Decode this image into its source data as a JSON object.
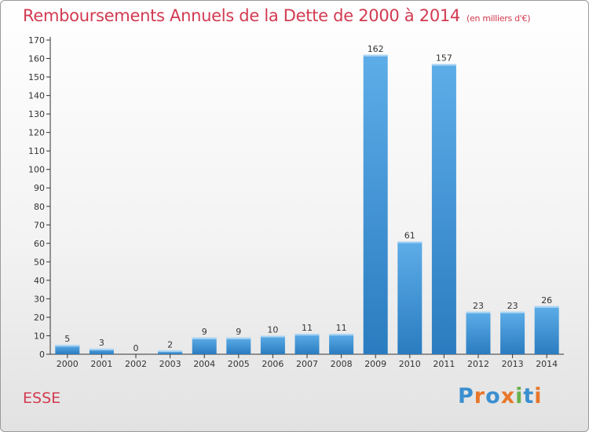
{
  "title": "Remboursements Annuels de la Dette de 2000 à 2014",
  "unit": "(en milliers d'€)",
  "commune": "ESSE",
  "logo": {
    "text": "Proxiti",
    "letters": [
      "P",
      "r",
      "o",
      "x",
      "i",
      "t",
      "i"
    ],
    "colors": [
      "#3b8fd0",
      "#e8762a",
      "#3b8fd0",
      "#e8762a",
      "#6ab04c",
      "#3b8fd0",
      "#e8762a"
    ]
  },
  "colors": {
    "bar_light": "#5dade8",
    "bar_dark": "#2a7cc0",
    "title": "#d23a50"
  },
  "chart_data": {
    "type": "bar",
    "title": "Remboursements Annuels de la Dette de 2000 à 2014",
    "subtitle": "(en milliers d'€)",
    "categories": [
      "2000",
      "2001",
      "2002",
      "2003",
      "2004",
      "2005",
      "2006",
      "2007",
      "2008",
      "2009",
      "2010",
      "2011",
      "2012",
      "2013",
      "2014"
    ],
    "values": [
      5,
      3,
      0,
      2,
      9,
      9,
      10,
      11,
      11,
      162,
      61,
      157,
      23,
      23,
      26
    ],
    "ylim": [
      0,
      170
    ],
    "yticks": [
      0,
      10,
      20,
      30,
      40,
      50,
      60,
      70,
      80,
      90,
      100,
      110,
      120,
      130,
      140,
      150,
      160,
      170
    ],
    "grid": false,
    "xlabel": "",
    "ylabel": ""
  }
}
